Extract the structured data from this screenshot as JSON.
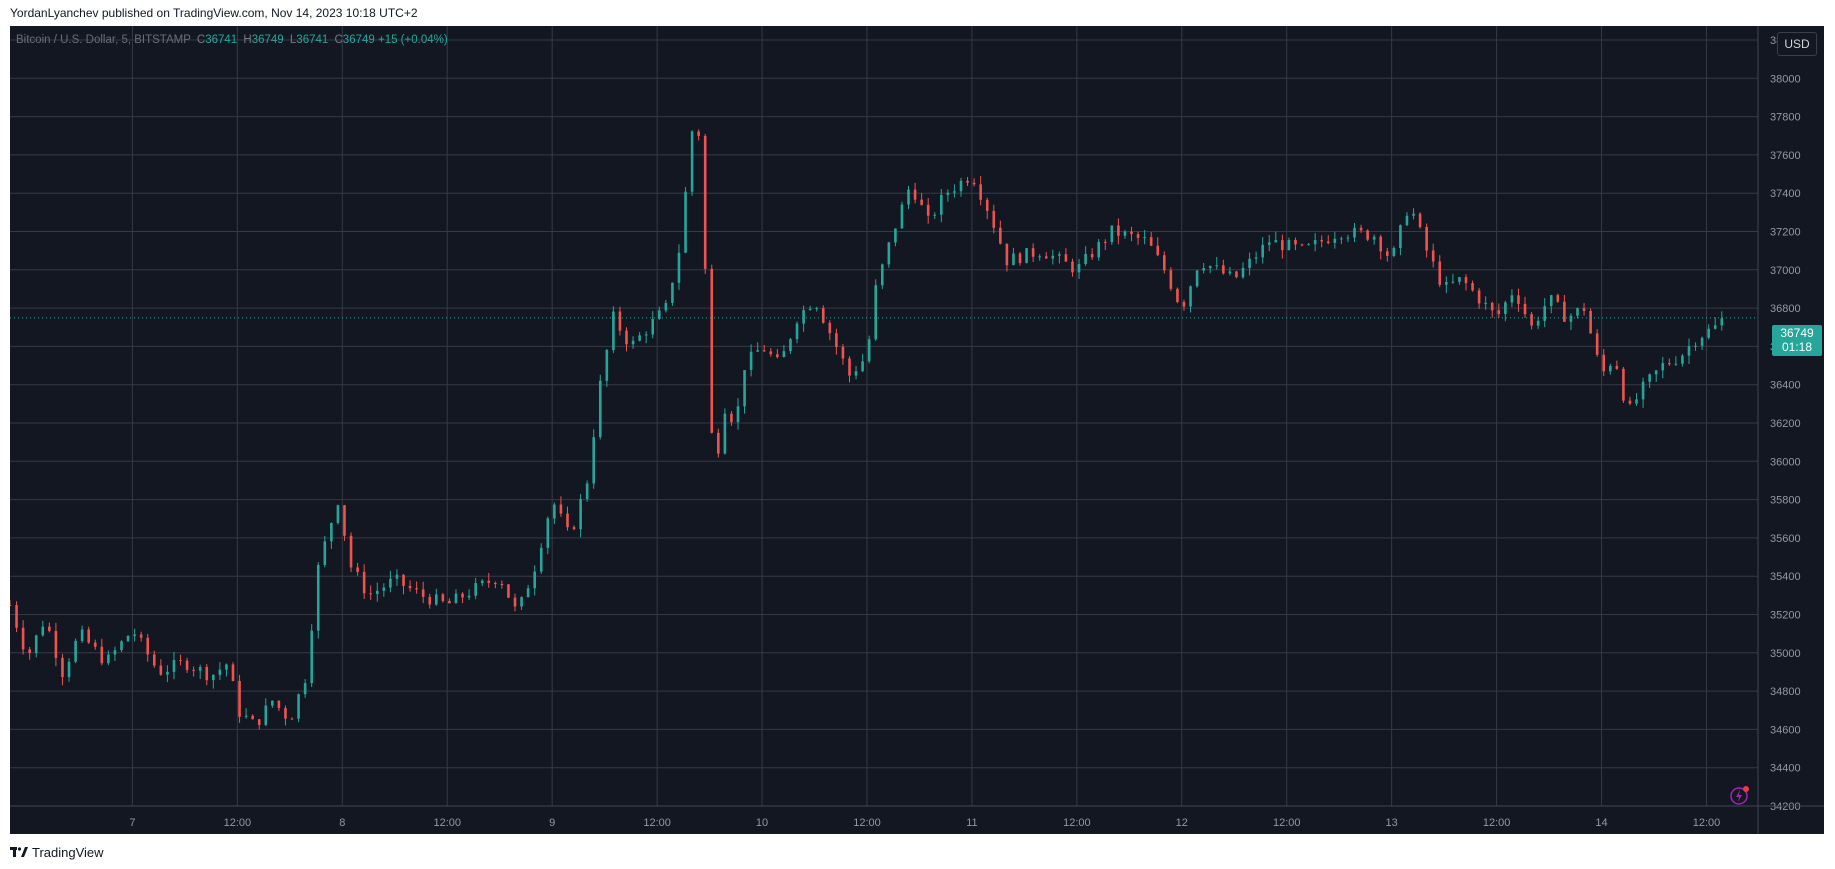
{
  "caption": "YordanLyanchev published on TradingView.com, Nov 14, 2023 10:18 UTC+2",
  "legend": {
    "symbol": "Bitcoin / U.S. Dollar, 5, BITSTAMP",
    "c_label": "C",
    "c_value": "36741",
    "h_label": "H",
    "h_value": "36749",
    "l_label": "L",
    "l_value": "36741",
    "close_label": "C",
    "close_value": "36749",
    "change": "+15 (+0.04%)"
  },
  "currency_button": "USD",
  "last_price": {
    "price": "36749",
    "countdown": "01:18"
  },
  "brand": "TradingView",
  "colors": {
    "background": "#131722",
    "up": "#26a69a",
    "down": "#ef5350",
    "grid": "#2a2e39",
    "text": "#b2b5be"
  },
  "chart_data": {
    "type": "line",
    "title": "Bitcoin / U.S. Dollar, 5, BITSTAMP",
    "x_ticks": [
      "7",
      "12:00",
      "8",
      "12:00",
      "9",
      "12:00",
      "10",
      "12:00",
      "11",
      "12:00",
      "12",
      "12:00",
      "13",
      "12:00",
      "14",
      "12:00"
    ],
    "y_ticks": [
      "38200",
      "38000",
      "37800",
      "37600",
      "37400",
      "37200",
      "37000",
      "36800",
      "36600",
      "36400",
      "36200",
      "36000",
      "35800",
      "35600",
      "35400",
      "35200",
      "35000",
      "34800",
      "34600",
      "34400",
      "34200"
    ],
    "ylim": [
      34200,
      38200
    ],
    "xlim_days": [
      "Nov 6 10:00",
      "Nov 14 15:50"
    ],
    "series": [
      {
        "points": [
          [
            "Nov 6 10:00",
            35250
          ],
          [
            "Nov 6 12:00",
            34980
          ],
          [
            "Nov 6 14:00",
            35180
          ],
          [
            "Nov 6 16:00",
            34900
          ],
          [
            "Nov 6 18:00",
            35100
          ],
          [
            "Nov 6 21:00",
            34950
          ],
          [
            "Nov 7 00:00",
            35120
          ],
          [
            "Nov 7 03:00",
            34900
          ],
          [
            "Nov 7 06:00",
            34950
          ],
          [
            "Nov 7 09:00",
            34880
          ],
          [
            "Nov 7 11:00",
            34950
          ],
          [
            "Nov 7 12:00",
            34700
          ],
          [
            "Nov 7 14:00",
            34620
          ],
          [
            "Nov 7 16:00",
            34750
          ],
          [
            "Nov 7 18:00",
            34650
          ],
          [
            "Nov 7 20:00",
            34900
          ],
          [
            "Nov 7 21:00",
            35400
          ],
          [
            "Nov 7 22:30",
            35650
          ],
          [
            "Nov 7 23:30",
            35800
          ],
          [
            "Nov 8 01:00",
            35450
          ],
          [
            "Nov 8 03:00",
            35300
          ],
          [
            "Nov 8 06:00",
            35380
          ],
          [
            "Nov 8 09:00",
            35300
          ],
          [
            "Nov 8 12:00",
            35250
          ],
          [
            "Nov 8 15:00",
            35330
          ],
          [
            "Nov 8 18:00",
            35400
          ],
          [
            "Nov 8 20:00",
            35200
          ],
          [
            "Nov 8 22:00",
            35450
          ],
          [
            "Nov 9 00:00",
            35800
          ],
          [
            "Nov 9 02:00",
            35600
          ],
          [
            "Nov 9 04:00",
            35900
          ],
          [
            "Nov 9 05:30",
            36400
          ],
          [
            "Nov 9 07:00",
            36750
          ],
          [
            "Nov 9 09:00",
            36600
          ],
          [
            "Nov 9 11:00",
            36700
          ],
          [
            "Nov 9 13:00",
            36800
          ],
          [
            "Nov 9 14:30",
            37100
          ],
          [
            "Nov 9 15:30",
            37500
          ],
          [
            "Nov 9 16:30",
            37950
          ],
          [
            "Nov 9 17:30",
            37000
          ],
          [
            "Nov 9 18:30",
            35850
          ],
          [
            "Nov 9 19:30",
            36300
          ],
          [
            "Nov 9 21:00",
            36200
          ],
          [
            "Nov 9 22:00",
            36500
          ],
          [
            "Nov 10 00:00",
            36600
          ],
          [
            "Nov 10 02:00",
            36500
          ],
          [
            "Nov 10 04:00",
            36750
          ],
          [
            "Nov 10 06:00",
            36850
          ],
          [
            "Nov 10 08:00",
            36650
          ],
          [
            "Nov 10 10:00",
            36450
          ],
          [
            "Nov 10 12:00",
            36550
          ],
          [
            "Nov 10 13:00",
            36900
          ],
          [
            "Nov 10 15:00",
            37200
          ],
          [
            "Nov 10 17:00",
            37450
          ],
          [
            "Nov 10 19:00",
            37250
          ],
          [
            "Nov 10 21:00",
            37400
          ],
          [
            "Nov 11 00:00",
            37500
          ],
          [
            "Nov 11 02:00",
            37300
          ],
          [
            "Nov 11 04:00",
            37050
          ],
          [
            "Nov 11 08:00",
            37100
          ],
          [
            "Nov 11 12:00",
            37000
          ],
          [
            "Nov 11 16:00",
            37200
          ],
          [
            "Nov 11 20:00",
            37150
          ],
          [
            "Nov 11 22:00",
            37000
          ],
          [
            "Nov 12 00:00",
            36800
          ],
          [
            "Nov 12 02:00",
            37050
          ],
          [
            "Nov 12 06:00",
            36950
          ],
          [
            "Nov 12 10:00",
            37150
          ],
          [
            "Nov 12 14:00",
            37100
          ],
          [
            "Nov 12 18:00",
            37200
          ],
          [
            "Nov 12 22:00",
            37180
          ],
          [
            "Nov 13 00:00",
            37050
          ],
          [
            "Nov 13 02:00",
            37350
          ],
          [
            "Nov 13 04:00",
            37100
          ],
          [
            "Nov 13 06:00",
            36900
          ],
          [
            "Nov 13 08:00",
            36950
          ],
          [
            "Nov 13 10:00",
            36850
          ],
          [
            "Nov 13 12:00",
            36750
          ],
          [
            "Nov 13 14:00",
            36900
          ],
          [
            "Nov 13 16:00",
            36700
          ],
          [
            "Nov 13 18:00",
            36850
          ],
          [
            "Nov 13 20:00",
            36750
          ],
          [
            "Nov 13 22:00",
            36800
          ],
          [
            "Nov 14 00:00",
            36450
          ],
          [
            "Nov 14 01:30",
            36550
          ],
          [
            "Nov 14 03:00",
            36250
          ],
          [
            "Nov 14 05:00",
            36400
          ],
          [
            "Nov 14 07:00",
            36500
          ],
          [
            "Nov 14 09:00",
            36550
          ],
          [
            "Nov 14 11:00",
            36650
          ],
          [
            "Nov 14 13:00",
            36700
          ],
          [
            "Nov 14 14:00",
            36749
          ]
        ]
      }
    ],
    "last_price": 36749,
    "grid": true
  }
}
